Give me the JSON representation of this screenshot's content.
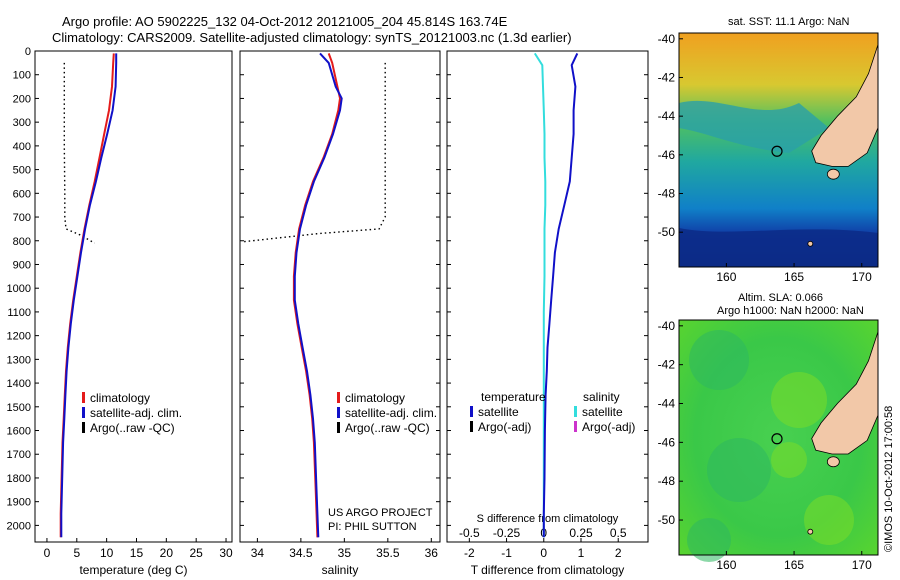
{
  "header": {
    "line1": "Argo profile: AO 5902225_132 04-Oct-2012 20121005_204 45.814S 163.74E",
    "line2": "Climatology: CARS2009. Satellite-adjusted climatology: synTS_20121003.nc (1.3d earlier)"
  },
  "colors": {
    "climatology": "#e41b1b",
    "satellite": "#1010c8",
    "salinity_satellite": "#33dddd",
    "argo": "#000000",
    "argo_salinity": "#cc33cc",
    "land": "#f2c8a8"
  },
  "chart_data": [
    {
      "type": "line",
      "name": "temperature-profile",
      "xlabel": "temperature (deg C)",
      "xlim": [
        -2,
        31
      ],
      "xticks": [
        0,
        5,
        10,
        15,
        20,
        25,
        30
      ],
      "ylim": [
        0,
        2070
      ],
      "yticks": [
        0,
        100,
        200,
        300,
        400,
        500,
        600,
        700,
        800,
        900,
        1000,
        1100,
        1200,
        1300,
        1400,
        1500,
        1600,
        1700,
        1800,
        1900,
        2000
      ],
      "y_reversed": true,
      "legend": [
        "climatology",
        "satellite-adj. clim.",
        "Argo(..raw -QC)"
      ],
      "series": [
        {
          "name": "climatology",
          "x": [
            11.2,
            11.1,
            10.9,
            10.4,
            9.6,
            8.8,
            8.0,
            7.1,
            6.3,
            5.6,
            5.0,
            4.4,
            3.9,
            3.5,
            3.2,
            3.0,
            2.8,
            2.6,
            2.5,
            2.4,
            2.3,
            2.3
          ],
          "y": [
            10,
            50,
            150,
            250,
            350,
            450,
            550,
            650,
            750,
            850,
            950,
            1050,
            1150,
            1250,
            1350,
            1450,
            1550,
            1650,
            1750,
            1850,
            1950,
            2050
          ]
        },
        {
          "name": "satellite-adj. clim.",
          "x": [
            11.6,
            11.6,
            11.5,
            11.0,
            10.1,
            9.1,
            8.2,
            7.2,
            6.4,
            5.7,
            5.1,
            4.5,
            4.0,
            3.6,
            3.3,
            3.1,
            2.9,
            2.7,
            2.6,
            2.5,
            2.4,
            2.4
          ],
          "y": [
            10,
            50,
            150,
            250,
            350,
            450,
            550,
            650,
            750,
            850,
            950,
            1050,
            1150,
            1250,
            1350,
            1450,
            1550,
            1650,
            1750,
            1850,
            1950,
            2050
          ]
        },
        {
          "name": "Argo(..raw -QC)",
          "x": [
            2.9,
            2.9,
            2.9,
            3.0,
            3.0,
            3.2,
            5.5,
            8.0
          ],
          "y": [
            50,
            200,
            400,
            600,
            700,
            750,
            775,
            810
          ]
        }
      ]
    },
    {
      "type": "line",
      "name": "salinity-profile",
      "xlabel": "salinity",
      "xlim": [
        33.8,
        36.1
      ],
      "xticks": [
        34,
        34.5,
        35,
        35.5,
        36
      ],
      "ylim": [
        0,
        2070
      ],
      "y_reversed": true,
      "legend": [
        "climatology",
        "satellite-adj. clim.",
        "Argo(..raw -QC)"
      ],
      "annotation": [
        "US ARGO PROJECT",
        "PI: PHIL SUTTON"
      ],
      "series": [
        {
          "name": "climatology",
          "x": [
            34.82,
            34.86,
            34.92,
            34.95,
            34.93,
            34.86,
            34.76,
            34.64,
            34.55,
            34.48,
            34.44,
            34.42,
            34.42,
            34.46,
            34.51,
            34.56,
            34.6,
            34.63,
            34.65,
            34.67,
            34.69
          ],
          "y": [
            10,
            50,
            150,
            200,
            250,
            350,
            450,
            550,
            650,
            750,
            850,
            950,
            1050,
            1150,
            1250,
            1350,
            1450,
            1550,
            1650,
            1850,
            2050
          ]
        },
        {
          "name": "satellite-adj. clim.",
          "x": [
            34.72,
            34.82,
            34.9,
            34.97,
            34.95,
            34.87,
            34.77,
            34.65,
            34.56,
            34.49,
            34.45,
            34.43,
            34.43,
            34.47,
            34.52,
            34.57,
            34.61,
            34.64,
            34.66,
            34.68,
            34.7
          ],
          "y": [
            10,
            50,
            150,
            200,
            250,
            350,
            450,
            550,
            650,
            750,
            850,
            950,
            1050,
            1150,
            1250,
            1350,
            1450,
            1550,
            1650,
            1850,
            2050
          ]
        },
        {
          "name": "Argo(..raw -QC)",
          "x": [
            35.47,
            35.47,
            35.47,
            35.47,
            35.47,
            35.4,
            34.7,
            33.82
          ],
          "y": [
            50,
            200,
            400,
            600,
            700,
            750,
            770,
            805
          ]
        }
      ]
    },
    {
      "type": "line",
      "name": "difference-profile",
      "xlabel": "T difference from climatology",
      "xlabel_top": "S difference from climatology",
      "xlim": [
        -2.6,
        2.8
      ],
      "xticks": [
        -2,
        -1,
        0,
        1,
        2
      ],
      "top_ticks": [
        -0.5,
        -0.25,
        0,
        0.25,
        0.5
      ],
      "top_scale": 4,
      "ylim": [
        0,
        2070
      ],
      "y_reversed": true,
      "legend_left_title": "temperature",
      "legend_right_title": "salinity",
      "legend_left": [
        "satellite",
        "Argo(-adj)"
      ],
      "legend_right": [
        "satellite",
        "Argo(-adj)"
      ],
      "series": [
        {
          "name": "temperature satellite",
          "x": [
            0.9,
            0.75,
            0.85,
            0.8,
            0.8,
            0.75,
            0.7,
            0.55,
            0.4,
            0.3,
            0.25,
            0.2,
            0.15,
            0.1,
            0.08,
            0.05,
            0.03,
            0.02,
            0.0,
            0.0
          ],
          "y": [
            10,
            60,
            150,
            250,
            350,
            450,
            550,
            650,
            750,
            850,
            950,
            1050,
            1150,
            1250,
            1350,
            1450,
            1600,
            1800,
            1950,
            2050
          ]
        },
        {
          "name": "salinity satellite",
          "x": [
            -0.06,
            -0.01,
            -0.005,
            0.0,
            0.005,
            0.005,
            0.01,
            0.01,
            0.005,
            0.005,
            0.005,
            0.0,
            0.0,
            0.0,
            0.0,
            0.0
          ],
          "y": [
            10,
            60,
            150,
            250,
            350,
            450,
            550,
            650,
            750,
            850,
            950,
            1100,
            1300,
            1500,
            1800,
            2050
          ]
        }
      ]
    }
  ],
  "maps": [
    {
      "name": "sst-map",
      "title": "sat. SST: 11.1  Argo: NaN",
      "xticks": [
        160,
        165,
        170
      ],
      "yticks": [
        -40,
        -42,
        -44,
        -46,
        -48,
        -50
      ],
      "xlim": [
        156.5,
        171.2
      ],
      "ylim": [
        -51.8,
        -39.7
      ],
      "argo_position": [
        163.74,
        -45.814
      ]
    },
    {
      "name": "sla-map",
      "title_line1": "Altim. SLA: 0.066",
      "title_line2": "Argo h1000: NaN h2000: NaN",
      "xticks": [
        160,
        165,
        170
      ],
      "yticks": [
        -40,
        -42,
        -44,
        -46,
        -48,
        -50
      ],
      "xlim": [
        156.5,
        171.2
      ],
      "ylim": [
        -51.8,
        -39.7
      ],
      "argo_position": [
        163.74,
        -45.814
      ]
    }
  ],
  "footer": {
    "stamp": "©IMOS 10-Oct-2012 17:00:58"
  }
}
